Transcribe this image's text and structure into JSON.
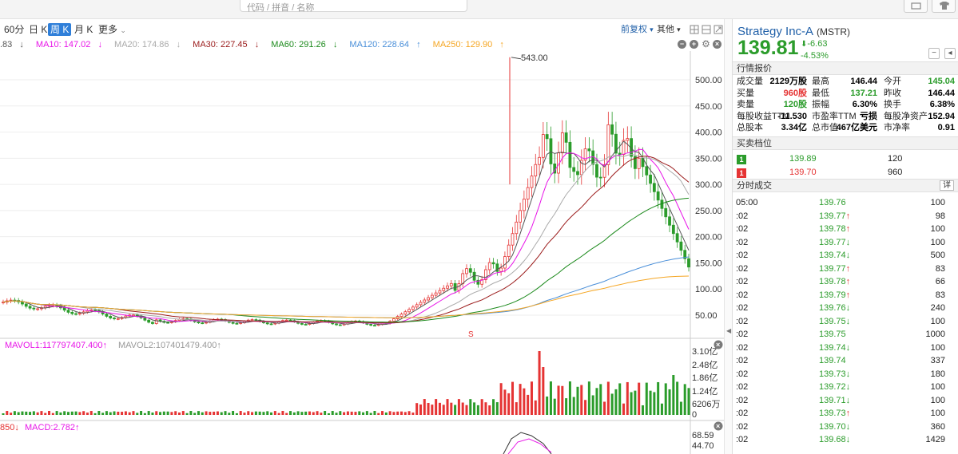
{
  "search": {
    "placeholder": "代码 / 拼音 / 名称"
  },
  "toolbar": {
    "tabs": [
      "60分",
      "日 K",
      "周 K",
      "月 K",
      "更多"
    ],
    "active": "周 K",
    "adjust_label": "前复权",
    "other_label": "其他"
  },
  "ma": {
    "ma5_partial": ".83",
    "ma10": "MA10: 147.02",
    "ma20": "MA20: 174.86",
    "ma30": "MA30: 227.45",
    "ma60": "MA60: 291.26",
    "ma120": "MA120: 228.64",
    "ma250": "MA250: 129.90",
    "arrows": [
      "↓",
      "↓",
      "↓",
      "↓",
      "↓",
      "↑",
      "↑"
    ]
  },
  "main_chart": {
    "y_labels": [
      "500.00",
      "450.00",
      "400.00",
      "350.00",
      "300.00",
      "250.00",
      "200.00",
      "150.00",
      "100.00",
      "50.00"
    ],
    "peak_label": "543.00",
    "split_marker": "S"
  },
  "volume": {
    "mavol1": "MAVOL1:117797407.400",
    "mavol2": "MAVOL2:107401479.400",
    "y_labels": [
      "3.10亿",
      "2.48亿",
      "1.86亿",
      "1.24亿",
      "6206万",
      "0"
    ]
  },
  "macd": {
    "partial": "850",
    "label": "MACD:2.782",
    "y_labels": [
      "68.59",
      "44.70"
    ]
  },
  "colors": {
    "up": "#e53333",
    "down": "#2b9c2b",
    "accent": "#2f7fd9",
    "ma5": "#555",
    "ma10": "#e815e8",
    "ma20": "#aaaaaa",
    "ma30": "#9b1b1b",
    "ma60": "#1c8a1c",
    "ma120": "#4a8fd9",
    "ma250": "#f5a623"
  },
  "quote": {
    "name": "Strategy Inc-A",
    "ticker": "(MSTR)",
    "price": "139.81",
    "change": "-6.63",
    "change_pct": "-4.53%",
    "section_quote": "行情报价",
    "rows": [
      [
        [
          "成交量",
          "2129万股",
          "#000"
        ],
        [
          "最高",
          "146.44",
          "#000"
        ],
        [
          "今开",
          "145.04",
          "#2b9c2b"
        ]
      ],
      [
        [
          "买量",
          "960股",
          "#e53333"
        ],
        [
          "最低",
          "137.21",
          "#2b9c2b"
        ],
        [
          "昨收",
          "146.44",
          "#000"
        ]
      ],
      [
        [
          "卖量",
          "120股",
          "#2b9c2b"
        ],
        [
          "振幅",
          "6.30%",
          "#000"
        ],
        [
          "换手",
          "6.38%",
          "#000"
        ]
      ],
      [
        [
          "每股收益TTM",
          "-11.530",
          "#000"
        ],
        [
          "市盈率TTM",
          "亏损",
          "#000"
        ],
        [
          "每股净资产",
          "152.94",
          "#000"
        ]
      ],
      [
        [
          "总股本",
          "3.34亿",
          "#000"
        ],
        [
          "总市值",
          "467亿美元",
          "#000"
        ],
        [
          "市净率",
          "0.91",
          "#000"
        ]
      ]
    ],
    "section_orderbook": "买卖档位",
    "orderbook": [
      {
        "level": "1",
        "price": "139.89",
        "qty": "120",
        "color": "#2b9c2b"
      },
      {
        "level": "1",
        "price": "139.70",
        "qty": "960",
        "color": "#e53333"
      }
    ],
    "section_ticks": "分时成交",
    "detail_label": "详",
    "ticks": [
      {
        "time": "05:00",
        "price": "139.76",
        "dir": "",
        "vol": "100"
      },
      {
        "time": ":02",
        "price": "139.77",
        "dir": "↑",
        "vol": "98"
      },
      {
        "time": ":02",
        "price": "139.78",
        "dir": "↑",
        "vol": "100"
      },
      {
        "time": ":02",
        "price": "139.77",
        "dir": "↓",
        "vol": "100"
      },
      {
        "time": ":02",
        "price": "139.74",
        "dir": "↓",
        "vol": "500"
      },
      {
        "time": ":02",
        "price": "139.77",
        "dir": "↑",
        "vol": "83"
      },
      {
        "time": ":02",
        "price": "139.78",
        "dir": "↑",
        "vol": "66"
      },
      {
        "time": ":02",
        "price": "139.79",
        "dir": "↑",
        "vol": "83"
      },
      {
        "time": ":02",
        "price": "139.76",
        "dir": "↓",
        "vol": "240"
      },
      {
        "time": ":02",
        "price": "139.75",
        "dir": "↓",
        "vol": "100"
      },
      {
        "time": ":02",
        "price": "139.75",
        "dir": "",
        "vol": "1000"
      },
      {
        "time": ":02",
        "price": "139.74",
        "dir": "↓",
        "vol": "100"
      },
      {
        "time": ":02",
        "price": "139.74",
        "dir": "",
        "vol": "337"
      },
      {
        "time": ":02",
        "price": "139.73",
        "dir": "↓",
        "vol": "180"
      },
      {
        "time": ":02",
        "price": "139.72",
        "dir": "↓",
        "vol": "100"
      },
      {
        "time": ":02",
        "price": "139.71",
        "dir": "↓",
        "vol": "100"
      },
      {
        "time": ":02",
        "price": "139.73",
        "dir": "↑",
        "vol": "100"
      },
      {
        "time": ":02",
        "price": "139.70",
        "dir": "↓",
        "vol": "360"
      },
      {
        "time": ":02",
        "price": "139.68",
        "dir": "↓",
        "vol": "1429"
      }
    ]
  },
  "chart_data": {
    "type": "line",
    "title": "",
    "series": [
      {
        "name": "MA10",
        "values": [
          147.02
        ]
      },
      {
        "name": "MA20",
        "values": [
          174.86
        ]
      },
      {
        "name": "MA30",
        "values": [
          227.45
        ]
      },
      {
        "name": "MA60",
        "values": [
          291.26
        ]
      },
      {
        "name": "MA120",
        "values": [
          228.64
        ]
      },
      {
        "name": "MA250",
        "values": [
          129.9
        ]
      }
    ],
    "ylim": [
      0,
      560
    ],
    "peak": 543.0
  }
}
